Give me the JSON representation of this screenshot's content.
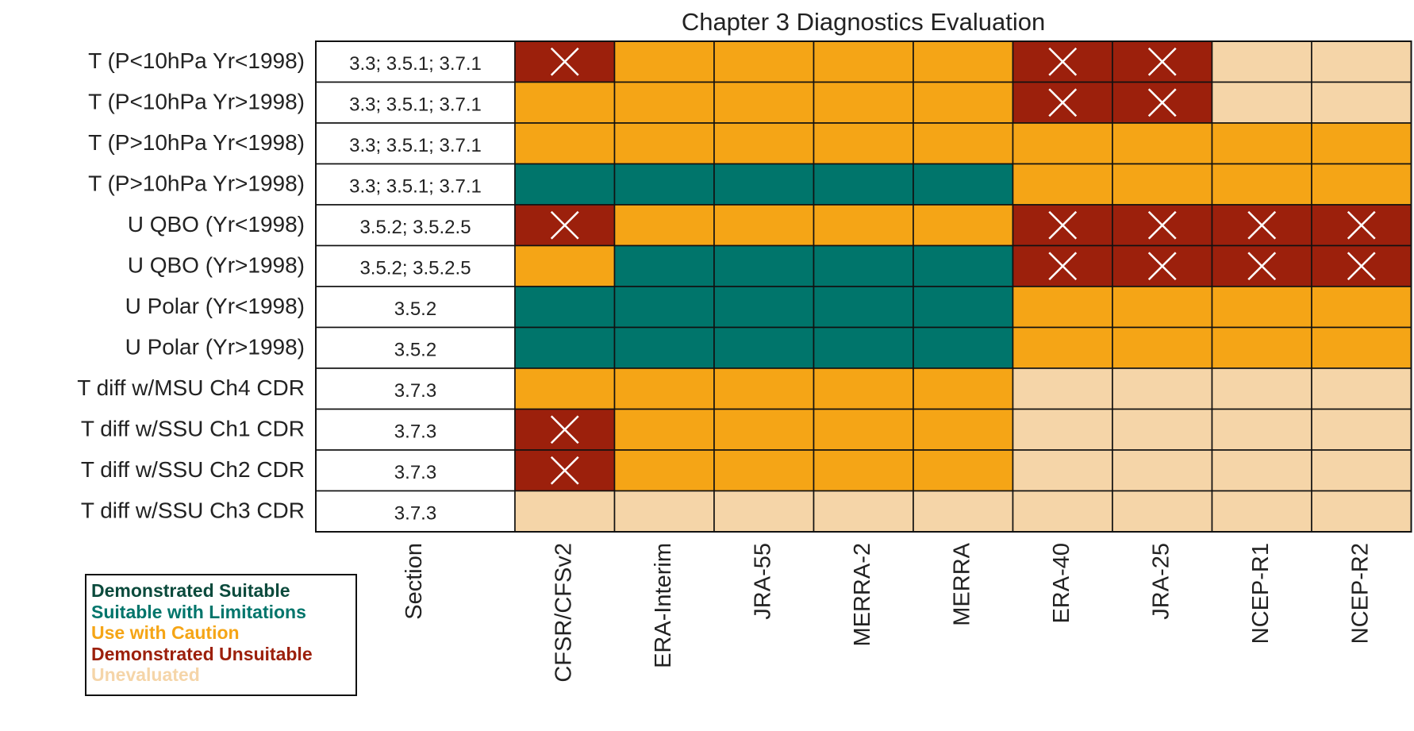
{
  "chart_data": {
    "type": "table",
    "title": "Chapter 3 Diagnostics Evaluation",
    "section_header": "Section",
    "columns": [
      "CFSR/CFSv2",
      "ERA-Interim",
      "JRA-55",
      "MERRA-2",
      "MERRA",
      "ERA-40",
      "JRA-25",
      "NCEP-R1",
      "NCEP-R2"
    ],
    "rows": [
      {
        "label": "T (P<10hPa Yr<1998)",
        "section": "3.3; 3.5.1; 3.7.1",
        "ratings": [
          "U",
          "C",
          "C",
          "C",
          "C",
          "U",
          "U",
          "N",
          "N"
        ]
      },
      {
        "label": "T (P<10hPa Yr>1998)",
        "section": "3.3; 3.5.1; 3.7.1",
        "ratings": [
          "C",
          "C",
          "C",
          "C",
          "C",
          "U",
          "U",
          "N",
          "N"
        ]
      },
      {
        "label": "T (P>10hPa Yr<1998)",
        "section": "3.3; 3.5.1; 3.7.1",
        "ratings": [
          "C",
          "C",
          "C",
          "C",
          "C",
          "C",
          "C",
          "C",
          "C"
        ]
      },
      {
        "label": "T (P>10hPa Yr>1998)",
        "section": "3.3; 3.5.1; 3.7.1",
        "ratings": [
          "L",
          "L",
          "L",
          "L",
          "L",
          "C",
          "C",
          "C",
          "C"
        ]
      },
      {
        "label": "U QBO (Yr<1998)",
        "section": "3.5.2; 3.5.2.5",
        "ratings": [
          "U",
          "C",
          "C",
          "C",
          "C",
          "U",
          "U",
          "U",
          "U"
        ]
      },
      {
        "label": "U QBO (Yr>1998)",
        "section": "3.5.2; 3.5.2.5",
        "ratings": [
          "C",
          "L",
          "L",
          "L",
          "L",
          "U",
          "U",
          "U",
          "U"
        ]
      },
      {
        "label": "U Polar (Yr<1998)",
        "section": "3.5.2",
        "ratings": [
          "L",
          "L",
          "L",
          "L",
          "L",
          "C",
          "C",
          "C",
          "C"
        ]
      },
      {
        "label": "U Polar (Yr>1998)",
        "section": "3.5.2",
        "ratings": [
          "L",
          "L",
          "L",
          "L",
          "L",
          "C",
          "C",
          "C",
          "C"
        ]
      },
      {
        "label": "T diff w/MSU Ch4 CDR",
        "section": "3.7.3",
        "ratings": [
          "C",
          "C",
          "C",
          "C",
          "C",
          "N",
          "N",
          "N",
          "N"
        ]
      },
      {
        "label": "T diff w/SSU Ch1 CDR",
        "section": "3.7.3",
        "ratings": [
          "U",
          "C",
          "C",
          "C",
          "C",
          "N",
          "N",
          "N",
          "N"
        ]
      },
      {
        "label": "T diff w/SSU Ch2 CDR",
        "section": "3.7.3",
        "ratings": [
          "U",
          "C",
          "C",
          "C",
          "C",
          "N",
          "N",
          "N",
          "N"
        ]
      },
      {
        "label": "T diff w/SSU Ch3 CDR",
        "section": "3.7.3",
        "ratings": [
          "N",
          "N",
          "N",
          "N",
          "N",
          "N",
          "N",
          "N",
          "N"
        ]
      }
    ],
    "categories": {
      "S": {
        "label": "Demonstrated Suitable",
        "color": "#0b4a3c"
      },
      "L": {
        "label": "Suitable with Limitations",
        "color": "#00756b"
      },
      "C": {
        "label": "Use with Caution",
        "color": "#f5a516"
      },
      "U": {
        "label": "Demonstrated Unsuitable",
        "color": "#9c200c"
      },
      "N": {
        "label": "Unevaluated",
        "color": "#f5d5a8"
      }
    },
    "unsuitable_marker": "cross",
    "legend_order": [
      "S",
      "L",
      "C",
      "U",
      "N"
    ]
  }
}
